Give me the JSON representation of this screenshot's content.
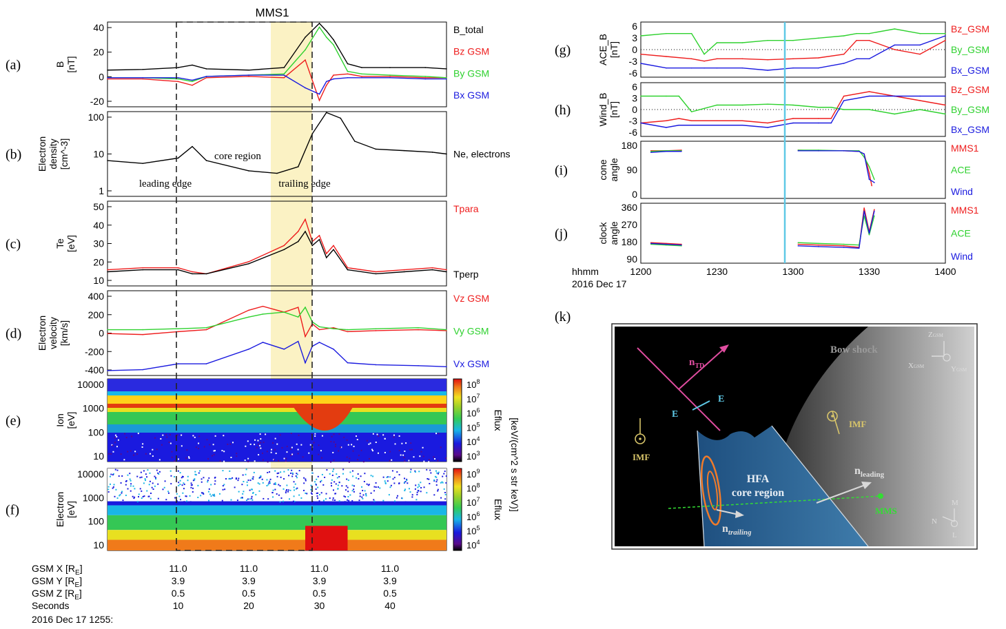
{
  "colors": {
    "black": "#000000",
    "red": "#ee1c1c",
    "green": "#2ed12e",
    "blue": "#1a1adf",
    "grey": "#707070",
    "highlight": "#fbf2c4",
    "cyan": "#5ec8e6",
    "pink": "#e04da0",
    "orange": "#f07b2a",
    "gold": "#d8c56a"
  },
  "left": {
    "title": "MMS1",
    "panels": [
      {
        "id": "a",
        "label": "(a)",
        "ylabel": [
          "B",
          "[nT]"
        ],
        "yticks": [
          "40",
          "20",
          "0",
          "-20"
        ],
        "legend": [
          {
            "text": "B_total",
            "color": "#000000"
          },
          {
            "text": "Bz GSM",
            "color": "#ee1c1c"
          },
          {
            "text": "By GSM",
            "color": "#2ed12e"
          },
          {
            "text": "Bx GSM",
            "color": "#1a1adf"
          }
        ]
      },
      {
        "id": "b",
        "label": "(b)",
        "ylabel": [
          "Electron",
          "density",
          "[cm^-3]"
        ],
        "yticks": [
          "100",
          "10",
          "1"
        ],
        "legend": [
          {
            "text": "Ne, electrons",
            "color": "#000000"
          }
        ],
        "annotations": [
          "core region",
          "leading  edge",
          "trailing  edge"
        ]
      },
      {
        "id": "c",
        "label": "(c)",
        "ylabel": [
          "Te",
          "[eV]"
        ],
        "yticks": [
          "50",
          "40",
          "30",
          "20",
          "10"
        ],
        "legend": [
          {
            "text": "Tpara",
            "color": "#ee1c1c"
          },
          {
            "text": "Tperp",
            "color": "#000000"
          }
        ]
      },
      {
        "id": "d",
        "label": "(d)",
        "ylabel": [
          "Electron",
          "velocity",
          "[km/s]"
        ],
        "yticks": [
          "400",
          "200",
          "0",
          "-200",
          "-400"
        ],
        "legend": [
          {
            "text": "Vz GSM",
            "color": "#ee1c1c"
          },
          {
            "text": "Vy GSM",
            "color": "#2ed12e"
          },
          {
            "text": "Vx GSM",
            "color": "#1a1adf"
          }
        ]
      },
      {
        "id": "e",
        "label": "(e)",
        "ylabel": [
          "Ion",
          "[eV]"
        ],
        "yticks": [
          "10000",
          "1000",
          "100",
          "10"
        ],
        "cbar_title": "Eflux",
        "cbar_ticks": [
          "10",
          "10",
          "10",
          "10",
          "10",
          "10"
        ],
        "cbar_exps": [
          "8",
          "7",
          "6",
          "5",
          "4",
          "3"
        ]
      },
      {
        "id": "f",
        "label": "(f)",
        "ylabel": [
          "Electron",
          "[eV]"
        ],
        "yticks": [
          "10000",
          "1000",
          "100",
          "10"
        ],
        "cbar_title": "Eflux",
        "cbar_ticks": [
          "10",
          "10",
          "10",
          "10",
          "10",
          "10"
        ],
        "cbar_exps": [
          "9",
          "8",
          "7",
          "6",
          "5",
          "4"
        ]
      }
    ],
    "cbar_units": "[keV/(cm^2 s str keV)]",
    "cbar_units_e": "[keV/(cm^2 s str keV)]",
    "orbit_rows": [
      {
        "label": "GSM X [R",
        "sub": "E",
        "close": "]",
        "values": [
          "11.0",
          "11.0",
          "11.0",
          "11.0"
        ]
      },
      {
        "label": "GSM Y [R",
        "sub": "E",
        "close": "]",
        "values": [
          "3.9",
          "3.9",
          "3.9",
          "3.9"
        ]
      },
      {
        "label": "GSM Z [R",
        "sub": "E",
        "close": "]",
        "values": [
          "0.5",
          "0.5",
          "0.5",
          "0.5"
        ]
      },
      {
        "label": "Seconds",
        "sub": "",
        "close": "",
        "values": [
          "10",
          "20",
          "30",
          "40"
        ]
      }
    ],
    "date_line": "2016 Dec 17 1255:"
  },
  "right": {
    "panels": [
      {
        "id": "g",
        "label": "(g)",
        "ylabel": [
          "ACE_B",
          "[nT]"
        ],
        "yticks": [
          "6",
          "3",
          "0",
          "-3",
          "-6"
        ],
        "legend": [
          {
            "text": "Bz_GSM",
            "color": "#ee1c1c"
          },
          {
            "text": "By_GSM",
            "color": "#2ed12e"
          },
          {
            "text": "Bx_GSM",
            "color": "#1a1adf"
          }
        ]
      },
      {
        "id": "h",
        "label": "(h)",
        "ylabel": [
          "Wind_B",
          "[nT]"
        ],
        "yticks": [
          "6",
          "3",
          "0",
          "-3",
          "-6"
        ],
        "legend": [
          {
            "text": "Bz_GSM",
            "color": "#ee1c1c"
          },
          {
            "text": "By_GSM",
            "color": "#2ed12e"
          },
          {
            "text": "Bx_GSM",
            "color": "#1a1adf"
          }
        ]
      },
      {
        "id": "i",
        "label": "(i)",
        "ylabel": [
          "cone",
          "angle"
        ],
        "yticks": [
          "180",
          "90",
          "0"
        ],
        "legend": [
          {
            "text": "MMS1",
            "color": "#ee1c1c"
          },
          {
            "text": "ACE",
            "color": "#2ed12e"
          },
          {
            "text": "Wind",
            "color": "#1a1adf"
          }
        ]
      },
      {
        "id": "j",
        "label": "(j)",
        "ylabel": [
          "clock",
          "angle"
        ],
        "yticks": [
          "360",
          "270",
          "180",
          "90"
        ],
        "legend": [
          {
            "text": "MMS1",
            "color": "#ee1c1c"
          },
          {
            "text": "ACE",
            "color": "#2ed12e"
          },
          {
            "text": "Wind",
            "color": "#1a1adf"
          }
        ]
      }
    ],
    "xticks": [
      "1200",
      "1230",
      "1300",
      "1330",
      "1400"
    ],
    "xlabel_line1": "hhmm",
    "xlabel_line2": "2016 Dec 17"
  },
  "diagram": {
    "label": "(k)",
    "bow_shock": "Bow shock",
    "n_td": "n",
    "n_td_sub": "TD",
    "e_label": "E",
    "imf": "IMF",
    "hfa_line1": "HFA",
    "hfa_line2": "core region",
    "n_leading": "n",
    "n_leading_sub": "leading",
    "n_trailing": "n",
    "n_trailing_sub": "trailing",
    "mms": "MMS",
    "axes1": {
      "z": "Z",
      "z_sub": "GSM",
      "x": "X",
      "x_sub": "GSM",
      "y": "Y",
      "y_sub": "GSM"
    },
    "axes2": {
      "m": "M",
      "n": "N",
      "l": "L"
    }
  },
  "chart_data": [
    {
      "type": "line",
      "panel": "a",
      "title": "MMS1",
      "ylabel": "B [nT]",
      "ylim": [
        -25,
        42
      ],
      "x_unit": "Seconds after 2016 Dec 17 1255",
      "x": [
        0,
        5,
        10,
        12,
        14,
        20,
        25,
        28,
        30,
        31,
        32,
        34,
        36,
        40,
        45,
        48
      ],
      "series": [
        {
          "name": "B_total",
          "values": [
            4,
            4.5,
            6,
            8,
            5,
            4,
            6,
            30,
            41,
            35,
            28,
            9,
            6,
            6,
            6,
            5
          ]
        },
        {
          "name": "Bz GSM",
          "values": [
            -3,
            -3,
            -5,
            -8,
            -2,
            -1,
            -2,
            12,
            -20,
            -8,
            0,
            1,
            -1,
            -1,
            -2,
            -2
          ]
        },
        {
          "name": "By GSM",
          "values": [
            -2,
            -2,
            -3,
            -5,
            -1,
            0,
            1,
            20,
            38,
            30,
            24,
            3,
            1,
            0,
            -1,
            -2
          ]
        },
        {
          "name": "Bx GSM",
          "values": [
            -2,
            -2,
            -2,
            -4,
            -1,
            0,
            0,
            -10,
            -15,
            -5,
            -3,
            -2,
            -2,
            -2,
            -3,
            -3
          ]
        }
      ]
    },
    {
      "type": "line",
      "panel": "b",
      "ylabel": "Electron density [cm^-3]",
      "ylim": [
        1,
        100
      ],
      "yscale": "log",
      "x": [
        0,
        5,
        10,
        12,
        14,
        20,
        24,
        27,
        29,
        31,
        33,
        35,
        38,
        42,
        46,
        48
      ],
      "series": [
        {
          "name": "Ne, electrons",
          "values": [
            7,
            6,
            8,
            15,
            7,
            4,
            3.5,
            5,
            30,
            95,
            70,
            20,
            13,
            12,
            11,
            10
          ]
        }
      ]
    },
    {
      "type": "line",
      "panel": "c",
      "ylabel": "Te [eV]",
      "ylim": [
        8,
        50
      ],
      "x": [
        0,
        5,
        10,
        12,
        14,
        20,
        25,
        27,
        28,
        29,
        30,
        31,
        32,
        34,
        38,
        42,
        46,
        48
      ],
      "series": [
        {
          "name": "Tpara",
          "values": [
            16,
            17,
            17,
            15,
            14,
            20,
            28,
            35,
            41,
            30,
            33,
            24,
            28,
            17,
            15,
            16,
            17,
            16
          ]
        },
        {
          "name": "Tperp",
          "values": [
            15,
            16,
            16,
            14,
            14,
            19,
            26,
            30,
            35,
            28,
            31,
            22,
            26,
            16,
            14,
            15,
            16,
            15
          ]
        }
      ]
    },
    {
      "type": "line",
      "panel": "d",
      "ylabel": "Electron velocity [km/s]",
      "ylim": [
        -450,
        420
      ],
      "x": [
        0,
        5,
        10,
        14,
        20,
        22,
        25,
        27,
        28,
        29,
        30,
        32,
        34,
        38,
        44,
        48
      ],
      "series": [
        {
          "name": "Vz GSM",
          "values": [
            -20,
            -30,
            0,
            20,
            220,
            260,
            200,
            250,
            -50,
            80,
            20,
            40,
            0,
            10,
            20,
            10
          ]
        },
        {
          "name": "Vy GSM",
          "values": [
            20,
            20,
            30,
            40,
            150,
            180,
            200,
            150,
            250,
            100,
            50,
            30,
            20,
            30,
            40,
            20
          ]
        },
        {
          "name": "Vx GSM",
          "values": [
            -400,
            -390,
            -330,
            -330,
            -180,
            -110,
            -180,
            -100,
            -320,
            -150,
            -110,
            -180,
            -320,
            -340,
            -350,
            -360
          ]
        }
      ]
    },
    {
      "type": "heatmap",
      "panel": "e",
      "ylabel": "Ion [eV]",
      "ylim": [
        3,
        30000
      ],
      "yscale": "log",
      "colorbar": "Eflux [keV/(cm^2 s str keV)]",
      "clim": [
        1000,
        100000000
      ]
    },
    {
      "type": "heatmap",
      "panel": "f",
      "ylabel": "Electron [eV]",
      "ylim": [
        5,
        30000
      ],
      "yscale": "log",
      "colorbar": "Eflux [keV/(cm^2 s str keV)]",
      "clim": [
        10000,
        1000000000
      ]
    },
    {
      "type": "line",
      "panel": "g",
      "ylabel": "ACE_B [nT]",
      "ylim": [
        -6,
        6
      ],
      "x_unit": "minutes after 1200",
      "x": [
        0,
        10,
        20,
        25,
        30,
        40,
        50,
        60,
        70,
        80,
        85,
        90,
        100,
        110,
        120
      ],
      "series": [
        {
          "name": "Bz_GSM",
          "values": [
            -1,
            -1.5,
            -2,
            -2.5,
            -2,
            -2,
            -2.2,
            -2,
            -1.8,
            -1,
            2,
            2,
            0,
            -1,
            2
          ]
        },
        {
          "name": "By_GSM",
          "values": [
            3,
            3.5,
            3.5,
            -1,
            1.5,
            1.5,
            2,
            2,
            2.5,
            3,
            3.5,
            3.5,
            4.5,
            3.5,
            3.5
          ]
        },
        {
          "name": "Bx_GSM",
          "values": [
            -3,
            -4,
            -4,
            -4,
            -4,
            -4,
            -4.5,
            -4,
            -4,
            -3,
            -2,
            -2,
            1,
            1,
            3
          ]
        }
      ]
    },
    {
      "type": "line",
      "panel": "h",
      "ylabel": "Wind_B [nT]",
      "ylim": [
        -6,
        6
      ],
      "x_unit": "minutes after 1200",
      "x": [
        0,
        10,
        15,
        20,
        30,
        40,
        50,
        60,
        70,
        75,
        80,
        90,
        100,
        110,
        120
      ],
      "series": [
        {
          "name": "Bz_GSM",
          "values": [
            -3,
            -2.5,
            -2,
            -2.5,
            -2.5,
            -2.5,
            -3,
            -2,
            -2,
            -2,
            3,
            4,
            3,
            2,
            1
          ]
        },
        {
          "name": "By_GSM",
          "values": [
            3,
            3,
            3,
            -0.5,
            1,
            1,
            1.2,
            1,
            0.5,
            0.5,
            0,
            0,
            -1,
            0,
            -1
          ]
        },
        {
          "name": "Bx_GSM",
          "values": [
            -3,
            -4,
            -3.5,
            -3.5,
            -3.5,
            -3.5,
            -4,
            -3,
            -3,
            -3,
            2,
            3,
            3,
            3,
            3
          ]
        }
      ]
    },
    {
      "type": "scatter",
      "panel": "i",
      "ylabel": "cone angle",
      "ylim": [
        0,
        180
      ],
      "x_unit": "minutes after 1200",
      "series": [
        {
          "name": "MMS1",
          "x": [
            4,
            10,
            16,
            62,
            70,
            80,
            86,
            88,
            90,
            91
          ],
          "values": [
            150,
            150,
            152,
            152,
            150,
            150,
            148,
            140,
            80,
            40
          ]
        },
        {
          "name": "ACE",
          "x": [
            4,
            10,
            16,
            62,
            70,
            80,
            86,
            88,
            90,
            92
          ],
          "values": [
            148,
            150,
            150,
            152,
            152,
            150,
            150,
            130,
            100,
            60
          ]
        },
        {
          "name": "Wind",
          "x": [
            4,
            10,
            16,
            62,
            70,
            80,
            86,
            88,
            90,
            92
          ],
          "values": [
            145,
            148,
            148,
            150,
            150,
            150,
            148,
            140,
            60,
            50
          ]
        }
      ]
    },
    {
      "type": "scatter",
      "panel": "j",
      "ylabel": "clock angle",
      "ylim": [
        0,
        380
      ],
      "x_unit": "minutes after 1200",
      "series": [
        {
          "name": "MMS1",
          "x": [
            4,
            10,
            16,
            62,
            70,
            80,
            86,
            88,
            90,
            92
          ],
          "values": [
            130,
            125,
            120,
            120,
            115,
            110,
            100,
            350,
            200,
            340
          ]
        },
        {
          "name": "ACE",
          "x": [
            4,
            10,
            16,
            62,
            70,
            80,
            86,
            88,
            90,
            92
          ],
          "values": [
            120,
            115,
            110,
            130,
            125,
            120,
            115,
            300,
            180,
            300
          ]
        },
        {
          "name": "Wind",
          "x": [
            4,
            10,
            16,
            62,
            70,
            80,
            86,
            88,
            90,
            92
          ],
          "values": [
            125,
            120,
            115,
            110,
            105,
            100,
            95,
            330,
            190,
            330
          ]
        }
      ]
    }
  ]
}
